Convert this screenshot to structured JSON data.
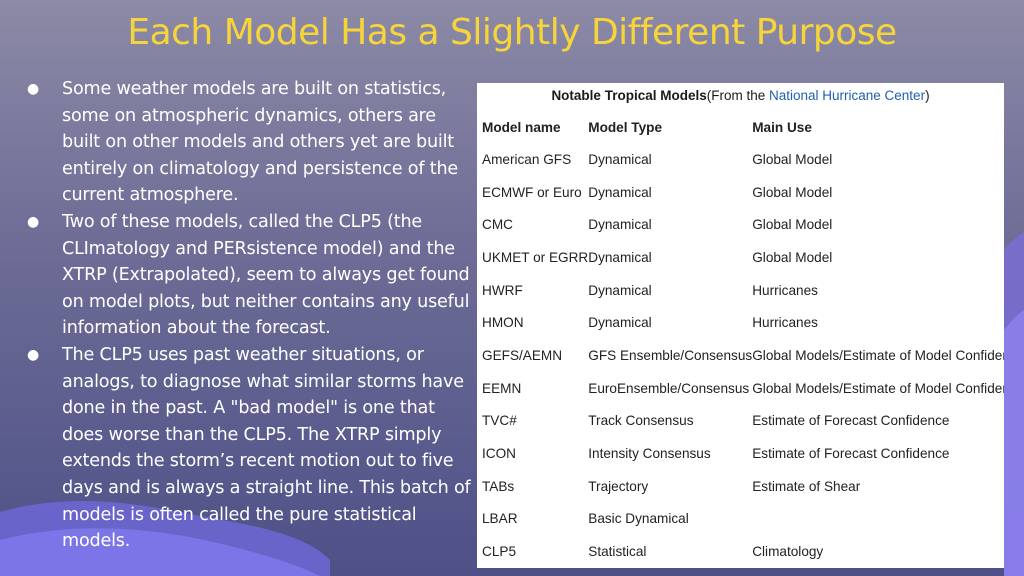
{
  "slide": {
    "title": "Each Model Has a Slightly Different Purpose",
    "bullets": [
      "Some weather models are built on statistics, some on atmospheric dynamics, others are built on other models and others yet are built entirely on climatology and persistence of the current atmosphere.",
      "Two of these models, called the CLP5 (the CLImatology and PERsistence model) and the XTRP (Extrapolated), seem to always get found on model plots, but neither contains any useful information about the forecast.",
      "The CLP5 uses past weather situations, or analogs, to diagnose what similar storms have done in the past. A \"bad model\" is one that does worse than the CLP5. The XTRP simply extends the storm’s recent motion out to five days and is always a straight line. This batch of models is often called the pure statistical models."
    ]
  },
  "table": {
    "caption_bold": "Notable Tropical Models",
    "caption_from": "(From the ",
    "caption_link": "National Hurricane Center",
    "caption_end": ")",
    "headers": [
      "Model name",
      "Model Type",
      "Main Use"
    ],
    "rows": [
      [
        "American GFS",
        "Dynamical",
        "Global Model"
      ],
      [
        "ECMWF or Euro",
        "Dynamical",
        "Global Model"
      ],
      [
        "CMC",
        "Dynamical",
        "Global Model"
      ],
      [
        "UKMET or EGRR",
        "Dynamical",
        "Global Model"
      ],
      [
        "HWRF",
        "Dynamical",
        "Hurricanes"
      ],
      [
        "HMON",
        "Dynamical",
        "Hurricanes"
      ],
      [
        "GEFS/AEMN",
        "GFS Ensemble/Consensus",
        "Global Models/Estimate of Model Confidence"
      ],
      [
        "EEMN",
        "EuroEnsemble/Consensus",
        "Global Models/Estimate of Model Confidence"
      ],
      [
        "TVC#",
        "Track Consensus",
        "Estimate of Forecast Confidence"
      ],
      [
        "ICON",
        "Intensity Consensus",
        "Estimate of Forecast Confidence"
      ],
      [
        "TABs",
        "Trajectory",
        "Estimate of Shear"
      ],
      [
        "LBAR",
        "Basic Dynamical",
        ""
      ],
      [
        "CLP5",
        "Statistical",
        "Climatology"
      ]
    ]
  },
  "colors": {
    "title": "#f7d53a",
    "text": "#ffffff",
    "link": "#1f5fb0",
    "wave_light": "#7a74e0",
    "wave_dark": "#5a55c8"
  }
}
